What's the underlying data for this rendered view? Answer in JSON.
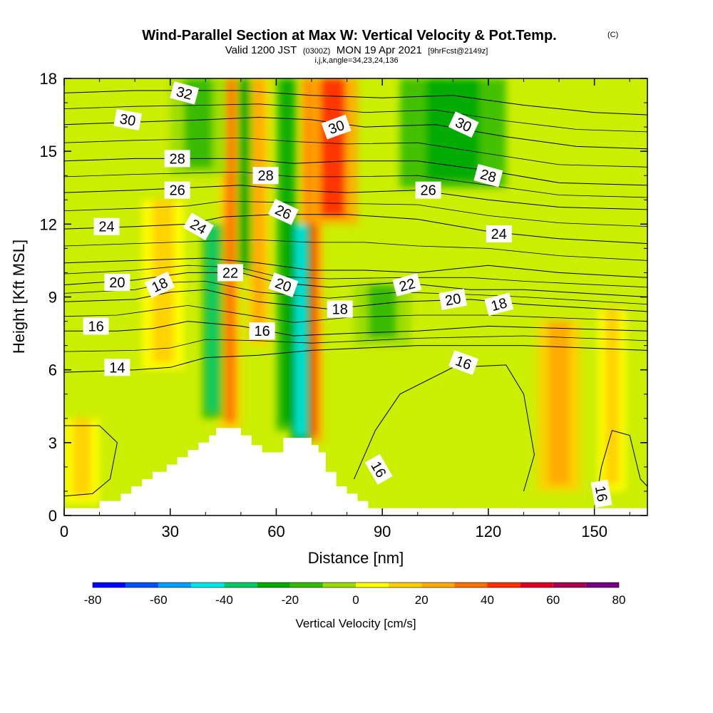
{
  "chart_data": {
    "type": "heatmap",
    "title": "Wind-Parallel Section at Max W: Vertical Velocity & Pot.Temp.",
    "title_suffix": "(C)",
    "subtitle_parts": [
      "Valid 1200 JST",
      "(0300Z)",
      "MON 19 Apr 2021",
      "[9hrFcst@2149z]"
    ],
    "subtitle2": "i,j,k,angle=34,23,24,136",
    "xlabel": "Distance [nm]",
    "ylabel": "Height [Kft MSL]",
    "xlim": [
      0,
      165
    ],
    "ylim": [
      0,
      18
    ],
    "xticks": [
      0,
      30,
      60,
      90,
      120,
      150
    ],
    "yticks": [
      0,
      3,
      6,
      9,
      12,
      15,
      18
    ],
    "colorbar": {
      "title": "Vertical Velocity [cm/s]",
      "levels": [
        -80,
        -70,
        -60,
        -50,
        -40,
        -30,
        -20,
        -10,
        0,
        10,
        20,
        30,
        40,
        50,
        60,
        70,
        80
      ],
      "tick_labels": [
        -80,
        -60,
        -40,
        -20,
        0,
        20,
        40,
        60,
        80
      ],
      "colors": [
        "#0000ff",
        "#0050ff",
        "#00a0ff",
        "#00e6e6",
        "#00cc66",
        "#00aa00",
        "#33bb00",
        "#99dd00",
        "#ffff00",
        "#ffd000",
        "#ffaa00",
        "#ff7000",
        "#ff3000",
        "#dd0020",
        "#aa0050",
        "#770080"
      ]
    },
    "updraft_bands": [
      {
        "x": 47,
        "w": 3,
        "y0": 3.5,
        "y1": 18,
        "value": 30
      },
      {
        "x": 55,
        "w": 3,
        "y0": 7.0,
        "y1": 18,
        "value": 22
      },
      {
        "x": 70,
        "w": 3,
        "y0": 3.0,
        "y1": 18,
        "value": 45
      },
      {
        "x": 76,
        "w": 7,
        "y0": 12.0,
        "y1": 18,
        "value": 45
      },
      {
        "x": 140,
        "w": 6,
        "y0": 1.0,
        "y1": 8.0,
        "value": 25
      },
      {
        "x": 155,
        "w": 4,
        "y0": 1.0,
        "y1": 8.5,
        "value": 15
      },
      {
        "x": 28,
        "w": 6,
        "y0": 6.0,
        "y1": 13,
        "value": 15
      },
      {
        "x": 5,
        "w": 5,
        "y0": 0.5,
        "y1": 4,
        "value": 12
      }
    ],
    "downdraft_bands": [
      {
        "x": 42,
        "w": 3,
        "y0": 4.0,
        "y1": 12,
        "value": -40
      },
      {
        "x": 51,
        "w": 2,
        "y0": 10.0,
        "y1": 18,
        "value": -25
      },
      {
        "x": 63,
        "w": 3,
        "y0": 3.5,
        "y1": 18,
        "value": -30
      },
      {
        "x": 67,
        "w": 3,
        "y0": 3.0,
        "y1": 12,
        "value": -45
      },
      {
        "x": 110,
        "w": 15,
        "y0": 13.5,
        "y1": 18,
        "value": -25
      },
      {
        "x": 90,
        "w": 8,
        "y0": 7.0,
        "y1": 9.5,
        "value": -15
      },
      {
        "x": 38,
        "w": 8,
        "y0": 14.0,
        "y1": 18,
        "value": -15
      }
    ],
    "terrain": [
      [
        0,
        0.3
      ],
      [
        10,
        0.3
      ],
      [
        10,
        0.6
      ],
      [
        16,
        0.6
      ],
      [
        16,
        0.9
      ],
      [
        19,
        0.9
      ],
      [
        19,
        1.2
      ],
      [
        22,
        1.2
      ],
      [
        22,
        1.5
      ],
      [
        25,
        1.5
      ],
      [
        25,
        1.8
      ],
      [
        29,
        1.8
      ],
      [
        29,
        2.1
      ],
      [
        32,
        2.1
      ],
      [
        32,
        2.4
      ],
      [
        35,
        2.4
      ],
      [
        35,
        2.7
      ],
      [
        38,
        2.7
      ],
      [
        38,
        3.0
      ],
      [
        41,
        3.0
      ],
      [
        41,
        3.3
      ],
      [
        43,
        3.3
      ],
      [
        43,
        3.6
      ],
      [
        50,
        3.6
      ],
      [
        50,
        3.3
      ],
      [
        53,
        3.3
      ],
      [
        53,
        2.9
      ],
      [
        56,
        2.9
      ],
      [
        56,
        2.6
      ],
      [
        62,
        2.6
      ],
      [
        62,
        3.2
      ],
      [
        70,
        3.2
      ],
      [
        70,
        2.9
      ],
      [
        72,
        2.9
      ],
      [
        72,
        2.6
      ],
      [
        74,
        2.6
      ],
      [
        74,
        1.8
      ],
      [
        77,
        1.8
      ],
      [
        77,
        1.2
      ],
      [
        80,
        1.2
      ],
      [
        80,
        0.9
      ],
      [
        83,
        0.9
      ],
      [
        83,
        0.6
      ],
      [
        86,
        0.6
      ],
      [
        86,
        0.3
      ],
      [
        165,
        0.3
      ]
    ],
    "isentropes": [
      {
        "value": 14,
        "points": [
          [
            0,
            5.9
          ],
          [
            20,
            6.0
          ],
          [
            30,
            6.1
          ],
          [
            40,
            6.5
          ],
          [
            55,
            6.6
          ],
          [
            70,
            6.8
          ],
          [
            85,
            6.9
          ],
          [
            100,
            7.0
          ],
          [
            130,
            7.0
          ],
          [
            165,
            6.8
          ]
        ]
      },
      {
        "value": 16,
        "points": [
          [
            0,
            7.6
          ],
          [
            15,
            7.6
          ],
          [
            25,
            7.7
          ],
          [
            35,
            8.0
          ],
          [
            50,
            7.8
          ],
          [
            65,
            7.4
          ],
          [
            80,
            7.5
          ],
          [
            100,
            7.6
          ],
          [
            120,
            7.8
          ],
          [
            165,
            7.6
          ]
        ]
      },
      {
        "value": 18,
        "points": [
          [
            0,
            8.8
          ],
          [
            20,
            8.9
          ],
          [
            30,
            9.2
          ],
          [
            40,
            9.3
          ],
          [
            55,
            8.8
          ],
          [
            75,
            8.5
          ],
          [
            95,
            8.8
          ],
          [
            115,
            8.9
          ],
          [
            130,
            8.7
          ],
          [
            165,
            8.4
          ]
        ]
      },
      {
        "value": 20,
        "points": [
          [
            0,
            9.5
          ],
          [
            20,
            9.7
          ],
          [
            35,
            10.0
          ],
          [
            50,
            10.0
          ],
          [
            60,
            9.6
          ],
          [
            75,
            9.4
          ],
          [
            95,
            9.6
          ],
          [
            115,
            9.3
          ],
          [
            130,
            9.3
          ],
          [
            165,
            9.0
          ]
        ]
      },
      {
        "value": 22,
        "points": [
          [
            0,
            10.4
          ],
          [
            20,
            10.5
          ],
          [
            40,
            10.6
          ],
          [
            55,
            10.4
          ],
          [
            70,
            10.1
          ],
          [
            85,
            10.1
          ],
          [
            100,
            10.0
          ],
          [
            120,
            10.3
          ],
          [
            140,
            10.0
          ],
          [
            165,
            9.8
          ]
        ]
      },
      {
        "value": 24,
        "points": [
          [
            0,
            11.8
          ],
          [
            20,
            11.9
          ],
          [
            35,
            12.0
          ],
          [
            45,
            12.3
          ],
          [
            60,
            12.4
          ],
          [
            80,
            12.4
          ],
          [
            100,
            12.2
          ],
          [
            120,
            11.7
          ],
          [
            140,
            11.4
          ],
          [
            165,
            11.2
          ]
        ]
      },
      {
        "value": 26,
        "points": [
          [
            0,
            13.3
          ],
          [
            20,
            13.4
          ],
          [
            35,
            13.5
          ],
          [
            50,
            13.6
          ],
          [
            65,
            13.4
          ],
          [
            80,
            13.3
          ],
          [
            100,
            13.4
          ],
          [
            120,
            13.0
          ],
          [
            140,
            12.7
          ],
          [
            165,
            12.6
          ]
        ]
      },
      {
        "value": 28,
        "points": [
          [
            0,
            14.6
          ],
          [
            20,
            14.7
          ],
          [
            35,
            14.7
          ],
          [
            50,
            14.7
          ],
          [
            65,
            14.5
          ],
          [
            80,
            14.6
          ],
          [
            100,
            14.6
          ],
          [
            120,
            14.2
          ],
          [
            140,
            13.7
          ],
          [
            165,
            13.6
          ]
        ]
      },
      {
        "value": 30,
        "points": [
          [
            0,
            16.1
          ],
          [
            20,
            16.2
          ],
          [
            40,
            16.3
          ],
          [
            55,
            16.4
          ],
          [
            70,
            16.3
          ],
          [
            85,
            16.0
          ],
          [
            105,
            16.1
          ],
          [
            125,
            15.6
          ],
          [
            145,
            15.2
          ],
          [
            165,
            15.1
          ]
        ]
      },
      {
        "value": 32,
        "points": [
          [
            0,
            17.4
          ],
          [
            20,
            17.5
          ],
          [
            35,
            17.5
          ],
          [
            50,
            17.5
          ],
          [
            70,
            17.3
          ],
          [
            90,
            17.2
          ],
          [
            110,
            17.3
          ],
          [
            130,
            16.9
          ],
          [
            150,
            16.6
          ],
          [
            165,
            16.5
          ]
        ]
      }
    ],
    "isentrope_16_lower": [
      [
        82,
        1.5
      ],
      [
        88,
        3.5
      ],
      [
        95,
        5.0
      ],
      [
        110,
        6.1
      ],
      [
        125,
        6.2
      ],
      [
        130,
        5.0
      ],
      [
        133,
        2.5
      ],
      [
        130,
        1.0
      ]
    ],
    "isentrope_16_right": [
      [
        150,
        0.3
      ],
      [
        152,
        2.0
      ],
      [
        155,
        3.5
      ],
      [
        160,
        3.3
      ],
      [
        163,
        1.5
      ],
      [
        165,
        1.2
      ]
    ],
    "isentrope_14_left": [
      [
        0,
        3.7
      ],
      [
        10,
        3.7
      ],
      [
        15,
        3.0
      ],
      [
        13,
        1.5
      ],
      [
        8,
        0.9
      ],
      [
        0,
        0.8
      ]
    ],
    "contour_labels": [
      {
        "text": "30",
        "x": 18,
        "y": 16.3,
        "angle": 10
      },
      {
        "text": "32",
        "x": 34,
        "y": 17.4,
        "angle": 15
      },
      {
        "text": "28",
        "x": 32,
        "y": 14.7,
        "angle": 0
      },
      {
        "text": "26",
        "x": 32,
        "y": 13.4,
        "angle": 0
      },
      {
        "text": "24",
        "x": 12,
        "y": 11.9,
        "angle": 0
      },
      {
        "text": "24",
        "x": 38,
        "y": 11.9,
        "angle": 30
      },
      {
        "text": "20",
        "x": 15,
        "y": 9.6,
        "angle": 0
      },
      {
        "text": "18",
        "x": 27,
        "y": 9.5,
        "angle": -25
      },
      {
        "text": "16",
        "x": 9,
        "y": 7.8,
        "angle": 0
      },
      {
        "text": "14",
        "x": 15,
        "y": 6.1,
        "angle": 0
      },
      {
        "text": "28",
        "x": 57,
        "y": 14.0,
        "angle": 0
      },
      {
        "text": "26",
        "x": 62,
        "y": 12.5,
        "angle": 25
      },
      {
        "text": "22",
        "x": 47,
        "y": 10.0,
        "angle": 0
      },
      {
        "text": "20",
        "x": 62,
        "y": 9.5,
        "angle": 20
      },
      {
        "text": "16",
        "x": 56,
        "y": 7.6,
        "angle": 0
      },
      {
        "text": "30",
        "x": 77,
        "y": 16.0,
        "angle": -20
      },
      {
        "text": "18",
        "x": 78,
        "y": 8.5,
        "angle": 0
      },
      {
        "text": "22",
        "x": 97,
        "y": 9.5,
        "angle": -15
      },
      {
        "text": "26",
        "x": 103,
        "y": 13.4,
        "angle": 0
      },
      {
        "text": "30",
        "x": 113,
        "y": 16.1,
        "angle": 25
      },
      {
        "text": "28",
        "x": 120,
        "y": 14.0,
        "angle": 15
      },
      {
        "text": "24",
        "x": 123,
        "y": 11.6,
        "angle": 0
      },
      {
        "text": "20",
        "x": 110,
        "y": 8.9,
        "angle": -10
      },
      {
        "text": "18",
        "x": 123,
        "y": 8.7,
        "angle": -15
      },
      {
        "text": "16",
        "x": 113,
        "y": 6.3,
        "angle": 20
      },
      {
        "text": "16",
        "x": 89,
        "y": 1.9,
        "angle": 60
      },
      {
        "text": "16",
        "x": 152,
        "y": 0.9,
        "angle": 80
      }
    ]
  }
}
